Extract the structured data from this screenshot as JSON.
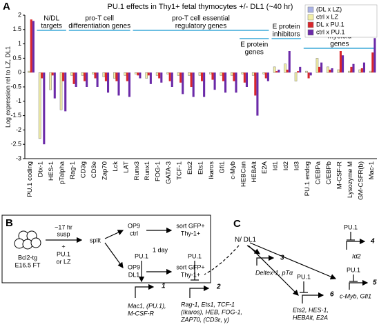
{
  "panel_labels": [
    "A",
    "B",
    "C"
  ],
  "chart_data": {
    "type": "bar",
    "title": "PU.1 effects in Thy1+ fetal thymocytes +/- DL1 (~40 hr)",
    "y_label": "Log expression rel to LZ, DL1",
    "categories": [
      "PU.1 coding",
      "Dtx-1",
      "HES-1",
      "pTalpha",
      "Rag-1",
      "CD3g",
      "CD3e",
      "Zap70",
      "Lck",
      "LAT",
      "Runx3",
      "Runx1",
      "FOG-1",
      "GATA-3",
      "TCF-1",
      "Ets2",
      "Ets1",
      "Ikaros",
      "Gfi1",
      "c-Myb",
      "HEBCan",
      "HEBAlt",
      "E2A",
      "Id1",
      "Id2",
      "Id3",
      "PU.1 endog",
      "C/EBPa",
      "C/EBPb",
      "M-CSF-R",
      "Lysozyme M",
      "GM-CSFR(b)",
      "Mac-1"
    ],
    "series": [
      {
        "name": "(DL x LZ)",
        "color": "#aab2e6",
        "values": [
          0,
          0,
          0,
          0,
          0,
          0,
          0,
          0,
          0,
          0,
          0,
          0,
          0,
          0,
          0,
          0,
          0,
          0,
          0,
          0,
          0,
          0,
          0,
          0,
          0,
          0,
          0,
          0,
          0,
          0,
          0,
          0,
          0
        ]
      },
      {
        "name": "ctrl x LZ",
        "color": "#f2efa6",
        "values": [
          0.05,
          -2.3,
          -0.6,
          -1.3,
          -0.1,
          -0.1,
          -0.05,
          -0.15,
          -0.2,
          -0.1,
          -0.05,
          -0.2,
          -0.1,
          -0.05,
          -0.1,
          -0.1,
          -0.1,
          -0.05,
          -0.1,
          -0.1,
          -0.05,
          -0.1,
          -0.05,
          0.2,
          0.3,
          -0.3,
          0.05,
          0.5,
          0.2,
          0.1,
          0.05,
          0.1,
          0.05
        ]
      },
      {
        "name": "DL x PU.1",
        "color": "#d8262b",
        "values": [
          1.85,
          -0.2,
          -0.1,
          -0.3,
          -0.4,
          -0.3,
          -0.2,
          -0.3,
          -0.3,
          -0.3,
          -0.1,
          -0.1,
          -0.2,
          -0.3,
          -0.35,
          -0.5,
          -0.3,
          -0.25,
          -0.3,
          -0.3,
          -0.35,
          -0.8,
          -0.2,
          0.05,
          0.1,
          0.05,
          -0.2,
          0.2,
          0.1,
          0.75,
          0.2,
          0.15,
          0.7
        ]
      },
      {
        "name": "ctrl x PU.1",
        "color": "#6b2aa8",
        "values": [
          1.8,
          -2.5,
          -0.9,
          -1.35,
          -0.5,
          -0.5,
          -0.5,
          -0.7,
          -0.8,
          -0.85,
          -0.2,
          -0.4,
          -0.35,
          -0.5,
          -0.75,
          -0.85,
          -0.85,
          -0.6,
          -0.7,
          -0.7,
          -0.5,
          -1.5,
          -0.3,
          0.1,
          0.75,
          0.2,
          -0.1,
          0.35,
          0.15,
          0.6,
          0.3,
          0.35,
          1.2
        ]
      }
    ],
    "ylim": [
      -3,
      2
    ],
    "yticks": [
      -3,
      -2.5,
      -2,
      -1.5,
      -1,
      -0.5,
      0,
      0.5,
      1,
      1.5,
      2
    ],
    "legend": "upper right",
    "group_labels": [
      [
        "N/DL",
        "targets"
      ],
      [
        "pro-T cell",
        "differentiation genes"
      ],
      [
        "pro-T cell essential",
        "regulatory genes"
      ],
      [
        "E protein",
        "genes"
      ],
      [
        "E protein",
        "inhibitors"
      ],
      [
        "myeloid",
        "genes"
      ]
    ]
  },
  "panel_b": {
    "source": [
      "Bcl2-tg",
      "E16.5 FT"
    ],
    "step": [
      "~17 hr",
      "susp",
      "+",
      "PU.1",
      "or LZ"
    ],
    "split": "split",
    "arms": [
      [
        "OP9",
        "ctrl"
      ],
      [
        "OP9",
        "DL1"
      ]
    ],
    "time": "1 day",
    "sort": [
      [
        "sort GFP+",
        "Thy-1+"
      ],
      [
        "sort GFP+",
        "Thy-1+"
      ]
    ]
  },
  "panel_c": {
    "signal": "N/ DL1",
    "regulator": [
      "PU.1",
      "PU.1",
      "PU.1",
      "PU.1",
      "PU.1"
    ],
    "genes": [
      {
        "number": "1",
        "lines": [
          "Mac1, (PU.1),",
          "M-CSF-R"
        ]
      },
      {
        "number": "2",
        "lines": [
          "Rag-1, Ets1, TCF-1",
          "(Ikaros), HEB, FOG-1,",
          "ZAP70, (CD3ε, γ)"
        ]
      },
      {
        "number": "3",
        "lines": [
          "Deltex-1, pTα"
        ]
      },
      {
        "number": "4",
        "lines": [
          "Id2"
        ]
      },
      {
        "number": "5",
        "lines": [
          "c-Myb, Gfi1"
        ]
      },
      {
        "number": "6",
        "lines": [
          "Ets2, HES-1,",
          "HEBAlt,  E2A"
        ]
      }
    ]
  }
}
